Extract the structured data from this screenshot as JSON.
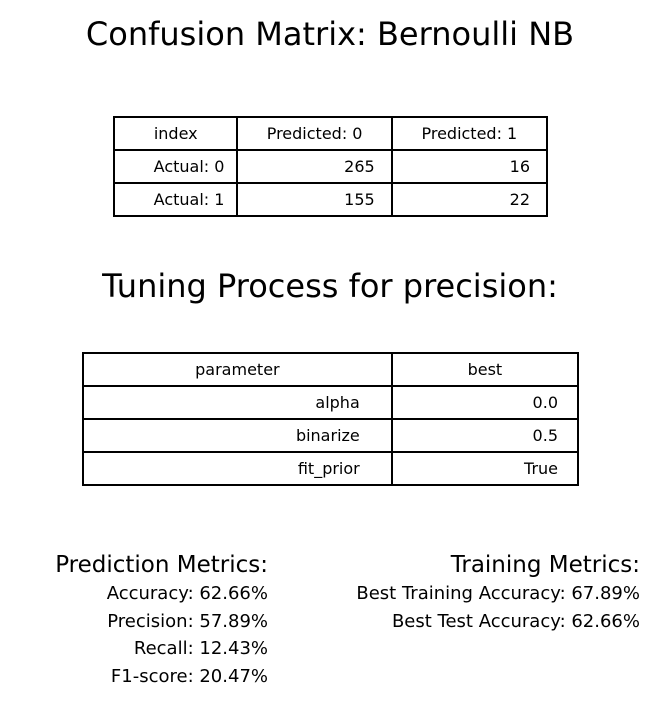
{
  "confusion_title": "Confusion Matrix: Bernoulli NB",
  "confusion_table": {
    "headers": [
      "index",
      "Predicted: 0",
      "Predicted: 1"
    ],
    "rows": [
      {
        "label": "Actual: 0",
        "pred0": "265",
        "pred1": "16"
      },
      {
        "label": "Actual: 1",
        "pred0": "155",
        "pred1": "22"
      }
    ]
  },
  "tuning_title": "Tuning Process for precision:",
  "tuning_table": {
    "headers": [
      "parameter",
      "best"
    ],
    "rows": [
      {
        "param": "alpha",
        "value": "0.0"
      },
      {
        "param": "binarize",
        "value": "0.5"
      },
      {
        "param": "fit_prior",
        "value": "True"
      }
    ]
  },
  "prediction_metrics": {
    "heading": "Prediction Metrics:",
    "lines": [
      "Accuracy: 62.66%",
      "Precision: 57.89%",
      "Recall: 12.43%",
      "F1-score: 20.47%"
    ]
  },
  "training_metrics": {
    "heading": "Training Metrics:",
    "lines": [
      "Best Training Accuracy: 67.89%",
      "Best Test Accuracy: 62.66%"
    ]
  },
  "chart_data": {
    "type": "table",
    "title": "Confusion Matrix: Bernoulli NB",
    "columns": [
      "Predicted: 0",
      "Predicted: 1"
    ],
    "rows": [
      "Actual: 0",
      "Actual: 1"
    ],
    "values": [
      [
        265,
        16
      ],
      [
        155,
        22
      ]
    ]
  }
}
